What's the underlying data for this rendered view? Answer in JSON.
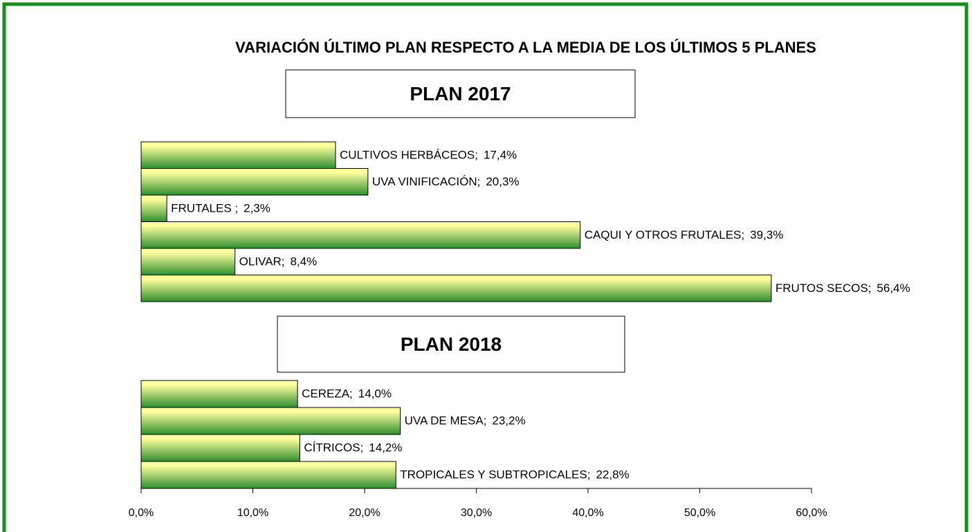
{
  "chart_data": {
    "type": "bar",
    "orientation": "horizontal",
    "title": "VARIACIÓN ÚLTIMO PLAN RESPECTO A LA MEDIA DE LOS ÚLTIMOS 5 PLANES",
    "gradient": [
      "#ffffa0",
      "#2f8f2f"
    ],
    "border_color": "#1a8c1a",
    "groups": [
      {
        "title": "PLAN 2017",
        "categories": [
          "CULTIVOS HERBÁCEOS;",
          "UVA VINIFICACIÓN;",
          "FRUTALES ;",
          "CAQUI Y OTROS FRUTALES;",
          "OLIVAR;",
          "FRUTOS SECOS;"
        ],
        "values": [
          17.4,
          20.3,
          2.3,
          39.3,
          8.4,
          56.4
        ],
        "value_labels": [
          "17,4%",
          "20,3%",
          "2,3%",
          "39,3%",
          "8,4%",
          "56,4%"
        ]
      },
      {
        "title": "PLAN 2018",
        "categories": [
          "CEREZA;",
          "UVA DE MESA;",
          "CÍTRICOS;",
          "TROPICALES Y SUBTROPICALES;"
        ],
        "values": [
          14.0,
          23.2,
          14.2,
          22.8
        ],
        "value_labels": [
          "14,0%",
          "23,2%",
          "14,2%",
          "22,8%"
        ]
      }
    ],
    "xlim": [
      0,
      60
    ],
    "xticks": [
      {
        "value": 0,
        "label": "0,0%"
      },
      {
        "value": 10,
        "label": "10,0%"
      },
      {
        "value": 20,
        "label": "20,0%"
      },
      {
        "value": 30,
        "label": "30,0%"
      },
      {
        "value": 40,
        "label": "40,0%"
      },
      {
        "value": 50,
        "label": "50,0%"
      },
      {
        "value": 60,
        "label": "60,0%"
      }
    ]
  }
}
